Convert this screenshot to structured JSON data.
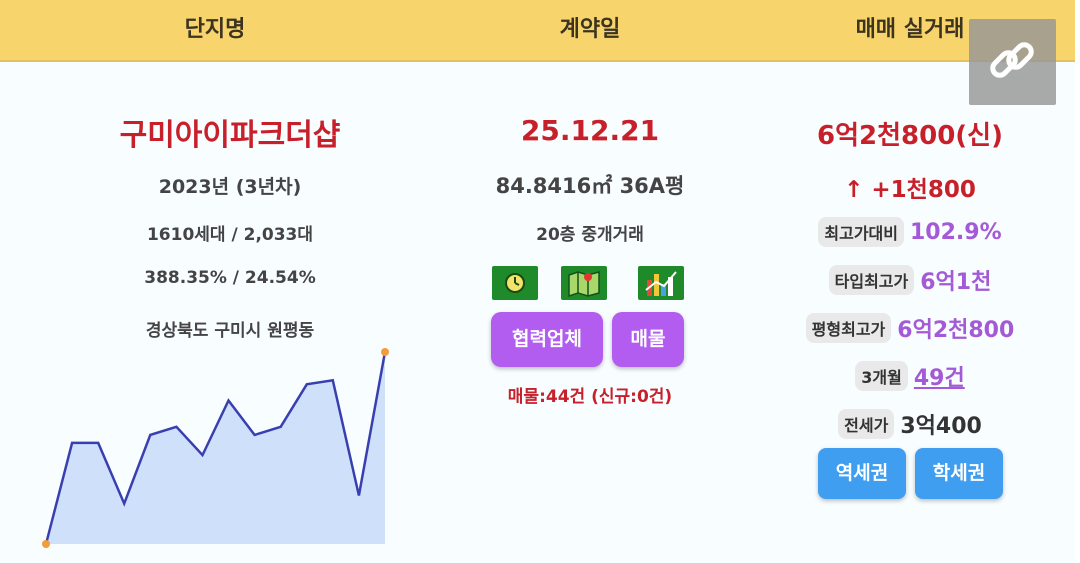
{
  "header": {
    "col1": "단지명",
    "col2": "계약일",
    "col3": "매매 실거래"
  },
  "complex": {
    "name": "구미아이파크더샵",
    "year": "2023년 (3년차)",
    "units": "1610세대 / 2,033대",
    "ratio": "388.35% / 24.54%",
    "address": "경상북도 구미시 원평동"
  },
  "trend_chart": {
    "values": [
      0,
      100,
      100,
      40,
      108,
      116,
      88,
      142,
      108,
      116,
      158,
      162,
      48,
      190
    ],
    "fill": "#cfe0fb",
    "stroke": "#3a3fb0",
    "endpoint_color": "#f39c3c"
  },
  "contract": {
    "date": "25.12.21",
    "area": "84.8416㎡ 36A평",
    "floor": "20층 중개거래",
    "icons": [
      "clock-icon",
      "map-icon",
      "chart-icon"
    ],
    "btn_partner": "협력업체",
    "btn_listing": "매물",
    "listing_count": "매물:44건 (신규:0건)"
  },
  "trade": {
    "price": "6억2천800(신)",
    "change": "↑ +1천800",
    "max_ratio_label": "최고가대비",
    "max_ratio_value": "102.9%",
    "type_max_label": "타입최고가",
    "type_max_value": "6억1천",
    "size_max_label": "평형최고가",
    "size_max_value": "6억2천800",
    "months_label": "3개월",
    "months_value": "49건",
    "jeonse_label": "전세가",
    "jeonse_value": "3억400",
    "btn_station": "역세권",
    "btn_school": "학세권"
  },
  "colors": {
    "header_bg": "#f8d46c",
    "red": "#c8202a",
    "purple": "#b25cf0",
    "blue": "#3f9ef0"
  }
}
